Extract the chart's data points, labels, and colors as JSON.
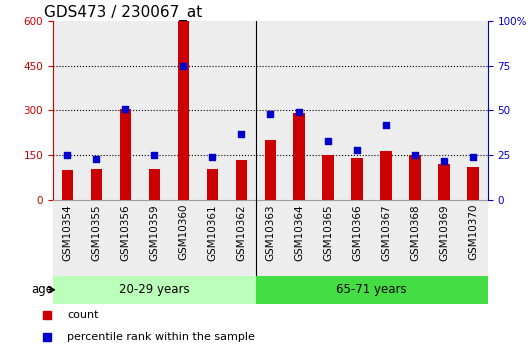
{
  "title": "GDS473 / 230067_at",
  "categories": [
    "GSM10354",
    "GSM10355",
    "GSM10356",
    "GSM10359",
    "GSM10360",
    "GSM10361",
    "GSM10362",
    "GSM10363",
    "GSM10364",
    "GSM10365",
    "GSM10366",
    "GSM10367",
    "GSM10368",
    "GSM10369",
    "GSM10370"
  ],
  "counts": [
    100,
    105,
    305,
    105,
    600,
    105,
    135,
    200,
    290,
    150,
    140,
    165,
    150,
    120,
    110
  ],
  "percentiles": [
    25,
    23,
    51,
    25,
    75,
    24,
    37,
    48,
    49,
    33,
    28,
    42,
    25,
    22,
    24
  ],
  "group1_label": "20-29 years",
  "group2_label": "65-71 years",
  "group1_count": 7,
  "group2_count": 8,
  "ylim_left": [
    0,
    600
  ],
  "ylim_right": [
    0,
    100
  ],
  "yticks_left": [
    0,
    150,
    300,
    450,
    600
  ],
  "yticks_right": [
    0,
    25,
    50,
    75,
    100
  ],
  "bar_color": "#cc0000",
  "dot_color": "#0000cc",
  "bg_group1": "#bbffbb",
  "bg_group2": "#44dd44",
  "legend_count": "count",
  "legend_percentile": "percentile rank within the sample",
  "age_label": "age",
  "title_fontsize": 11,
  "tick_fontsize": 7.5,
  "grid_color": "#000000",
  "sep_line_color": "#000000"
}
